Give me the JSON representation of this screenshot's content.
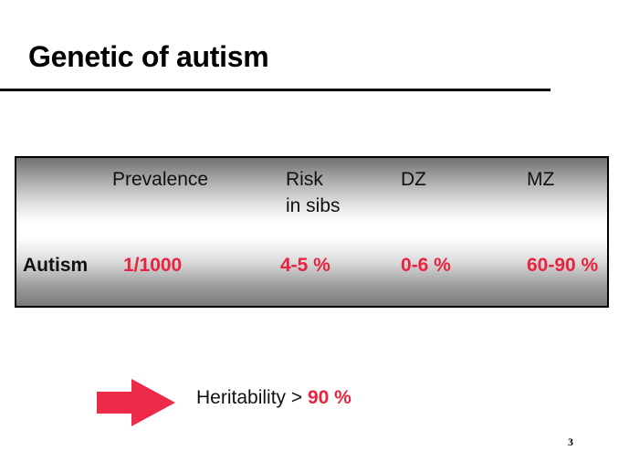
{
  "slide": {
    "title": "Genetic of autism",
    "page_number": "3"
  },
  "table": {
    "columns": [
      {
        "line1": "Prevalence",
        "line2": ""
      },
      {
        "line1": "Risk",
        "line2": "in sibs"
      },
      {
        "line1": "DZ",
        "line2": ""
      },
      {
        "line1": "MZ",
        "line2": ""
      }
    ],
    "rows": [
      {
        "label": "Autism",
        "values": [
          "1/1000",
          "4-5 %",
          "0-6 %",
          "60-90 %"
        ]
      }
    ]
  },
  "heritability": {
    "label": "Heritability > ",
    "value": "90 %"
  },
  "colors": {
    "accent_red": "#e8233f",
    "arrow": "#ee2a4a",
    "text": "#000000"
  },
  "icons": {
    "arrow": "right-arrow-icon"
  }
}
